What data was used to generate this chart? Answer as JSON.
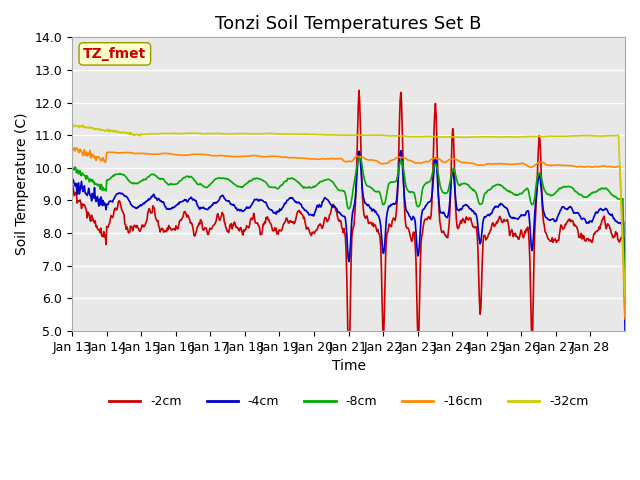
{
  "title": "Tonzi Soil Temperatures Set B",
  "xlabel": "Time",
  "ylabel": "Soil Temperature (C)",
  "ylim": [
    5.0,
    14.0
  ],
  "yticks": [
    5.0,
    6.0,
    7.0,
    8.0,
    9.0,
    10.0,
    11.0,
    12.0,
    13.0,
    14.0
  ],
  "xtick_labels": [
    "Jan 13",
    "Jan 14",
    "Jan 15",
    "Jan 16",
    "Jan 17",
    "Jan 18",
    "Jan 19",
    "Jan 20",
    "Jan 21",
    "Jan 22",
    "Jan 23",
    "Jan 24",
    "Jan 25",
    "Jan 26",
    "Jan 27",
    "Jan 28"
  ],
  "series_colors": [
    "#cc0000",
    "#0000cc",
    "#00aa00",
    "#ff8800",
    "#cccc00"
  ],
  "series_labels": [
    "-2cm",
    "-4cm",
    "-8cm",
    "-16cm",
    "-32cm"
  ],
  "annotation_text": "TZ_fmet",
  "annotation_color": "#cc0000",
  "annotation_bg": "#ffffcc",
  "background_color": "#e8e8e8",
  "grid_color": "#ffffff",
  "title_fontsize": 13,
  "axis_fontsize": 10,
  "tick_fontsize": 9,
  "line_width": 1.2
}
